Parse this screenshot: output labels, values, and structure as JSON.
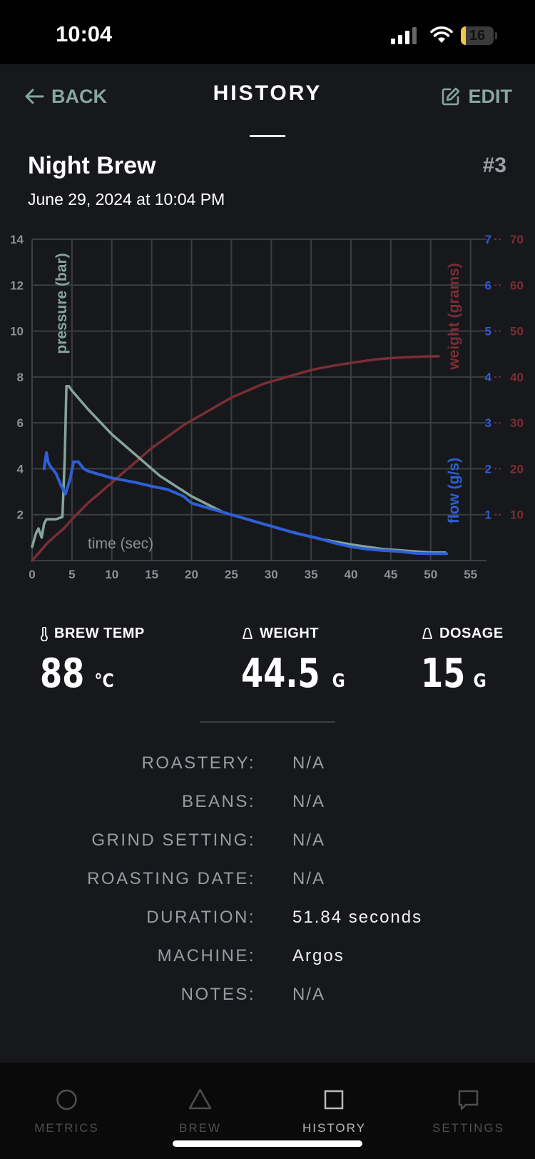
{
  "status_bar": {
    "time": "10:04",
    "battery": "16",
    "battery_level": 0.16
  },
  "header": {
    "back_label": "BACK",
    "title": "HISTORY",
    "edit_label": "EDIT"
  },
  "brew": {
    "name": "Night Brew",
    "number": "#3",
    "date": "June 29, 2024 at 10:04 PM"
  },
  "chart_data": {
    "type": "line",
    "xlabel": "time (sec)",
    "x_ticks": [
      "0",
      "5",
      "10",
      "15",
      "20",
      "25",
      "30",
      "35",
      "40",
      "45",
      "50",
      "55"
    ],
    "xlim": [
      0,
      57
    ],
    "grid": true,
    "axes": {
      "pressure": {
        "label": "pressure (bar)",
        "ticks": [
          "2",
          "4",
          "6",
          "8",
          "10",
          "12",
          "14"
        ],
        "ylim": [
          0,
          14
        ],
        "color": "#85a59b"
      },
      "flow": {
        "label": "flow (g/s)",
        "ticks": [
          "1",
          "2",
          "3",
          "4",
          "5",
          "6",
          "7"
        ],
        "ylim": [
          0,
          7
        ],
        "color": "#2d5fd6"
      },
      "weight": {
        "label": "weight (grams)",
        "ticks": [
          "10",
          "20",
          "30",
          "40",
          "50",
          "60",
          "70"
        ],
        "ylim": [
          0,
          70
        ],
        "color": "#7a2e33"
      }
    },
    "series": [
      {
        "axis": "pressure",
        "x": [
          0,
          0.5,
          0.8,
          1.2,
          1.5,
          1.8,
          2.2,
          3,
          3.8,
          4.1,
          4.3,
          4.6,
          5,
          7,
          10,
          13,
          16,
          20,
          24,
          28,
          32,
          36,
          40,
          44,
          48,
          50,
          51.8
        ],
        "y": [
          0.6,
          1.2,
          1.4,
          1.0,
          1.6,
          1.8,
          1.8,
          1.8,
          1.9,
          4.5,
          7.6,
          7.6,
          7.4,
          6.6,
          5.5,
          4.6,
          3.7,
          2.8,
          2.1,
          1.7,
          1.3,
          0.95,
          0.7,
          0.5,
          0.4,
          0.35,
          0.35
        ]
      },
      {
        "axis": "flow",
        "x": [
          1.5,
          1.8,
          2,
          2.3,
          3,
          3.6,
          4.2,
          4.8,
          5.2,
          5.8,
          6.5,
          7,
          8,
          10,
          13,
          15,
          17,
          19,
          20,
          22,
          24,
          26,
          28,
          30,
          33,
          36,
          38,
          40,
          42,
          44,
          46,
          48,
          50,
          52
        ],
        "y": [
          2.0,
          2.35,
          2.15,
          2.05,
          1.9,
          1.65,
          1.45,
          1.8,
          2.15,
          2.15,
          2.0,
          1.95,
          1.9,
          1.8,
          1.7,
          1.62,
          1.55,
          1.4,
          1.25,
          1.15,
          1.05,
          0.95,
          0.85,
          0.75,
          0.6,
          0.48,
          0.38,
          0.3,
          0.25,
          0.22,
          0.2,
          0.16,
          0.15,
          0.15
        ]
      },
      {
        "axis": "weight",
        "x": [
          0,
          1,
          2,
          3,
          4,
          5,
          7,
          9,
          11,
          13,
          15,
          17,
          19,
          21,
          23,
          25,
          27,
          29,
          31,
          33,
          35,
          37,
          39,
          41,
          43,
          45,
          47,
          49,
          51
        ],
        "y": [
          0,
          2,
          4,
          5.5,
          7,
          9,
          12.5,
          15.5,
          18.5,
          21.5,
          24.5,
          27,
          29.5,
          31.5,
          33.5,
          35.5,
          37,
          38.5,
          39.5,
          40.5,
          41.5,
          42.2,
          42.8,
          43.3,
          43.8,
          44.1,
          44.3,
          44.45,
          44.5
        ]
      }
    ]
  },
  "stats": {
    "brew_temp": {
      "label": "BREW TEMP",
      "value": "88",
      "unit": "°C"
    },
    "weight": {
      "label": "WEIGHT",
      "value": "44.5",
      "unit": "G"
    },
    "dosage": {
      "label": "DOSAGE",
      "value": "15",
      "unit": "G"
    }
  },
  "details": [
    {
      "label": "ROASTERY:",
      "value": "N/A"
    },
    {
      "label": "BEANS:",
      "value": "N/A"
    },
    {
      "label": "GRIND SETTING:",
      "value": "N/A"
    },
    {
      "label": "ROASTING DATE:",
      "value": "N/A"
    },
    {
      "label": "DURATION:",
      "value": "51.84 seconds"
    },
    {
      "label": "MACHINE:",
      "value": "Argos"
    },
    {
      "label": "NOTES:",
      "value": "N/A"
    }
  ],
  "tabs": [
    {
      "label": "METRICS",
      "icon": "circle-icon"
    },
    {
      "label": "BREW",
      "icon": "triangle-icon"
    },
    {
      "label": "HISTORY",
      "icon": "square-icon",
      "active": true
    },
    {
      "label": "SETTINGS",
      "icon": "chat-bubble-icon"
    }
  ]
}
